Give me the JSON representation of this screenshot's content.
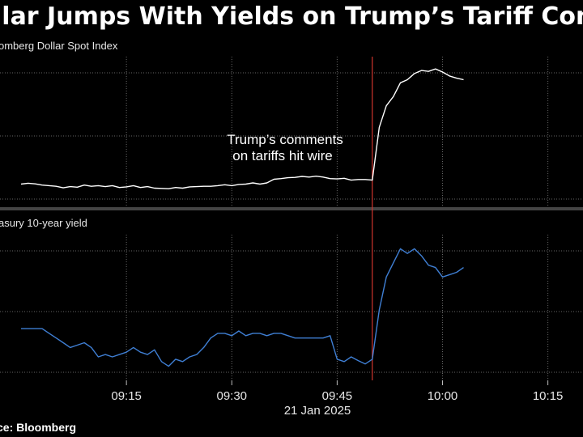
{
  "title": "llar Jumps With Yields on Trump’s Tariff Comm",
  "source": "ce: Bloomberg",
  "chart_data": [
    {
      "type": "line",
      "panel_label": "omberg Dollar Spot Index",
      "color": "#ffffff",
      "x": [
        "09:00",
        "09:01",
        "09:02",
        "09:03",
        "09:04",
        "09:05",
        "09:06",
        "09:07",
        "09:08",
        "09:09",
        "09:10",
        "09:11",
        "09:12",
        "09:13",
        "09:14",
        "09:15",
        "09:16",
        "09:17",
        "09:18",
        "09:19",
        "09:20",
        "09:21",
        "09:22",
        "09:23",
        "09:24",
        "09:25",
        "09:26",
        "09:27",
        "09:28",
        "09:29",
        "09:30",
        "09:31",
        "09:32",
        "09:33",
        "09:34",
        "09:35",
        "09:36",
        "09:37",
        "09:38",
        "09:39",
        "09:40",
        "09:41",
        "09:42",
        "09:43",
        "09:44",
        "09:45",
        "09:46",
        "09:47",
        "09:48",
        "09:49",
        "09:50",
        "09:51",
        "09:52",
        "09:53",
        "09:54",
        "09:55",
        "09:56",
        "09:57",
        "09:58",
        "09:59",
        "10:00",
        "10:01",
        "10:02",
        "10:03"
      ],
      "values": [
        0.05,
        0.08,
        0.06,
        0.02,
        0.0,
        -0.02,
        -0.07,
        -0.03,
        -0.05,
        0.02,
        -0.02,
        0.0,
        -0.03,
        0.0,
        -0.06,
        -0.04,
        0.0,
        -0.06,
        -0.03,
        -0.08,
        -0.09,
        -0.1,
        -0.06,
        -0.08,
        -0.04,
        -0.03,
        -0.02,
        -0.02,
        0.0,
        0.03,
        0.0,
        0.04,
        0.05,
        0.09,
        0.05,
        0.09,
        0.21,
        0.23,
        0.26,
        0.27,
        0.3,
        0.28,
        0.31,
        0.28,
        0.23,
        0.22,
        0.24,
        0.18,
        0.2,
        0.2,
        0.18,
        1.9,
        2.6,
        2.9,
        3.35,
        3.45,
        3.65,
        3.75,
        3.72,
        3.8,
        3.7,
        3.57,
        3.5,
        3.45
      ],
      "ylim": [
        -0.7,
        4.2
      ]
    },
    {
      "type": "line",
      "panel_label": "asury 10-year yield",
      "color": "#3f7fd4",
      "x": [
        "09:00",
        "09:01",
        "09:02",
        "09:03",
        "09:04",
        "09:05",
        "09:06",
        "09:07",
        "09:08",
        "09:09",
        "09:10",
        "09:11",
        "09:12",
        "09:13",
        "09:14",
        "09:15",
        "09:16",
        "09:17",
        "09:18",
        "09:19",
        "09:20",
        "09:21",
        "09:22",
        "09:23",
        "09:24",
        "09:25",
        "09:26",
        "09:27",
        "09:28",
        "09:29",
        "09:30",
        "09:31",
        "09:32",
        "09:33",
        "09:34",
        "09:35",
        "09:36",
        "09:37",
        "09:38",
        "09:39",
        "09:40",
        "09:41",
        "09:42",
        "09:43",
        "09:44",
        "09:45",
        "09:46",
        "09:47",
        "09:48",
        "09:49",
        "09:50",
        "09:51",
        "09:52",
        "09:53",
        "09:54",
        "09:55",
        "09:56",
        "09:57",
        "09:58",
        "09:59",
        "10:00",
        "10:01",
        "10:02",
        "10:03"
      ],
      "values": [
        2.6,
        2.6,
        2.6,
        2.6,
        2.5,
        2.4,
        2.3,
        2.2,
        2.25,
        2.3,
        2.2,
        2.0,
        2.05,
        2.0,
        2.05,
        2.1,
        2.2,
        2.1,
        2.05,
        2.15,
        1.9,
        1.8,
        1.95,
        1.9,
        2.0,
        2.05,
        2.2,
        2.4,
        2.5,
        2.5,
        2.45,
        2.55,
        2.45,
        2.5,
        2.5,
        2.45,
        2.5,
        2.5,
        2.45,
        2.4,
        2.4,
        2.4,
        2.4,
        2.4,
        2.45,
        1.95,
        1.9,
        2.0,
        1.92,
        1.85,
        1.95,
        3.0,
        3.7,
        4.0,
        4.3,
        4.2,
        4.3,
        4.15,
        3.95,
        3.9,
        3.7,
        3.75,
        3.8,
        3.9
      ],
      "ylim": [
        1.5,
        4.6
      ]
    }
  ],
  "x_axis": {
    "ticks": [
      "09:15",
      "09:30",
      "09:45",
      "10:00",
      "10:15"
    ],
    "date_label": "21 Jan 2025"
  },
  "annotation": {
    "line1": "Trump’s comments",
    "line2": "on tariffs hit wire",
    "time": "09:50",
    "color": "#d0342c"
  },
  "grid_color": "#666666"
}
